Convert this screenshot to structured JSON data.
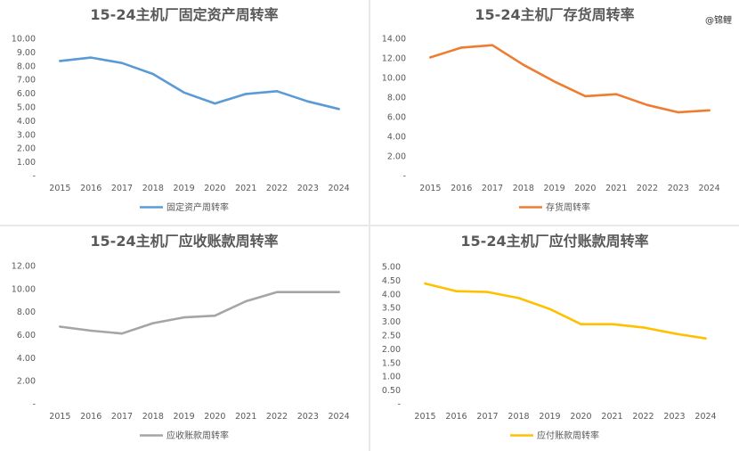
{
  "watermark": "@锦鲤",
  "chart_data": [
    {
      "type": "line",
      "title": "15-24主机厂固定资产周转率",
      "categories": [
        "2015",
        "2016",
        "2017",
        "2018",
        "2019",
        "2020",
        "2021",
        "2022",
        "2023",
        "2024"
      ],
      "series": [
        {
          "name": "固定资产周转率",
          "values": [
            8.35,
            8.6,
            8.2,
            7.4,
            6.05,
            5.25,
            5.95,
            6.15,
            5.4,
            4.85
          ],
          "color": "#5b9bd5"
        }
      ],
      "yticks": [
        "10.00",
        "9.00",
        "8.00",
        "7.00",
        "6.00",
        "5.00",
        "4.00",
        "3.00",
        "2.00",
        "1.00",
        "-"
      ],
      "ylim": [
        0,
        10
      ],
      "legend": "bottom"
    },
    {
      "type": "line",
      "title": "15-24主机厂存货周转率",
      "categories": [
        "2015",
        "2016",
        "2017",
        "2018",
        "2019",
        "2020",
        "2021",
        "2022",
        "2023",
        "2024"
      ],
      "series": [
        {
          "name": "存货周转率",
          "values": [
            12.05,
            13.05,
            13.3,
            11.3,
            9.6,
            8.1,
            8.3,
            7.2,
            6.45,
            6.65
          ],
          "color": "#ed7d31"
        }
      ],
      "yticks": [
        "14.00",
        "12.00",
        "10.00",
        "8.00",
        "6.00",
        "4.00",
        "2.00",
        "-"
      ],
      "ylim": [
        0,
        14
      ],
      "legend": "bottom"
    },
    {
      "type": "line",
      "title": "15-24主机厂应收账款周转率",
      "categories": [
        "2015",
        "2016",
        "2017",
        "2018",
        "2019",
        "2020",
        "2021",
        "2022",
        "2023",
        "2024"
      ],
      "series": [
        {
          "name": "应收账款周转率",
          "values": [
            6.7,
            6.35,
            6.1,
            7.0,
            7.5,
            7.65,
            8.9,
            9.7,
            9.7,
            9.7
          ],
          "color": "#a5a5a5"
        }
      ],
      "yticks": [
        "12.00",
        "10.00",
        "8.00",
        "6.00",
        "4.00",
        "2.00",
        "-"
      ],
      "ylim": [
        0,
        12
      ],
      "legend": "bottom"
    },
    {
      "type": "line",
      "title": "15-24主机厂应付账款周转率",
      "categories": [
        "2015",
        "2016",
        "2017",
        "2018",
        "2019",
        "2020",
        "2021",
        "2022",
        "2023",
        "2024"
      ],
      "series": [
        {
          "name": "应付账款周转率",
          "values": [
            4.38,
            4.1,
            4.07,
            3.85,
            3.45,
            2.9,
            2.9,
            2.78,
            2.56,
            2.38
          ],
          "color": "#ffc000"
        }
      ],
      "yticks": [
        "5.00",
        "4.50",
        "4.00",
        "3.50",
        "3.00",
        "2.50",
        "2.00",
        "1.50",
        "1.00",
        "0.50",
        "-"
      ],
      "ylim": [
        0,
        5
      ],
      "legend": "bottom"
    }
  ]
}
